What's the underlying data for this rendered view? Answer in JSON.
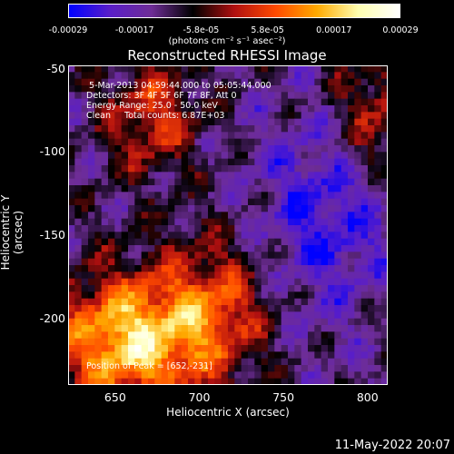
{
  "colorbar": {
    "ticks": [
      "-0.00029",
      "-0.00017",
      "-5.8e-05",
      "5.8e-05",
      "0.00017",
      "0.00029"
    ],
    "unit": "(photons cm⁻² s⁻¹ asec⁻²)",
    "colors": [
      "#0000ff",
      "#5a1ec8",
      "#6e2d96",
      "#000000",
      "#b01010",
      "#ff4a00",
      "#ffaa00",
      "#ffffb0",
      "#ffffff"
    ]
  },
  "chart_data": {
    "type": "heatmap",
    "title": "Reconstructed RHESSI Image",
    "xlabel": "Heliocentric X (arcsec)",
    "ylabel": "Heliocentric Y (arcsec)",
    "xlim": [
      622,
      812
    ],
    "ylim": [
      -240,
      -48
    ],
    "xticks": [
      "650",
      "700",
      "750",
      "800"
    ],
    "xtick_values": [
      650,
      700,
      750,
      800
    ],
    "yticks": [
      "-50",
      "-100",
      "-150",
      "-200"
    ],
    "ytick_values": [
      -50,
      -100,
      -150,
      -200
    ],
    "value_range": [
      -0.00029,
      0.00029
    ],
    "peak": [
      652,
      -231
    ],
    "annotations": {
      "time": " 5-Mar-2013 04:59:44.000 to 05:05:44.000",
      "detectors": "Detectors: 3F 4F 5F 6F 7F 8F, Att 0",
      "energy": "Energy Range: 25.0 - 50.0 keV",
      "clean": "Clean     Total counts: 6.87E+03",
      "peak_label": "Position of Peak = [652,-231]"
    }
  },
  "footer": {
    "date": "11-May-2022 20:07"
  }
}
